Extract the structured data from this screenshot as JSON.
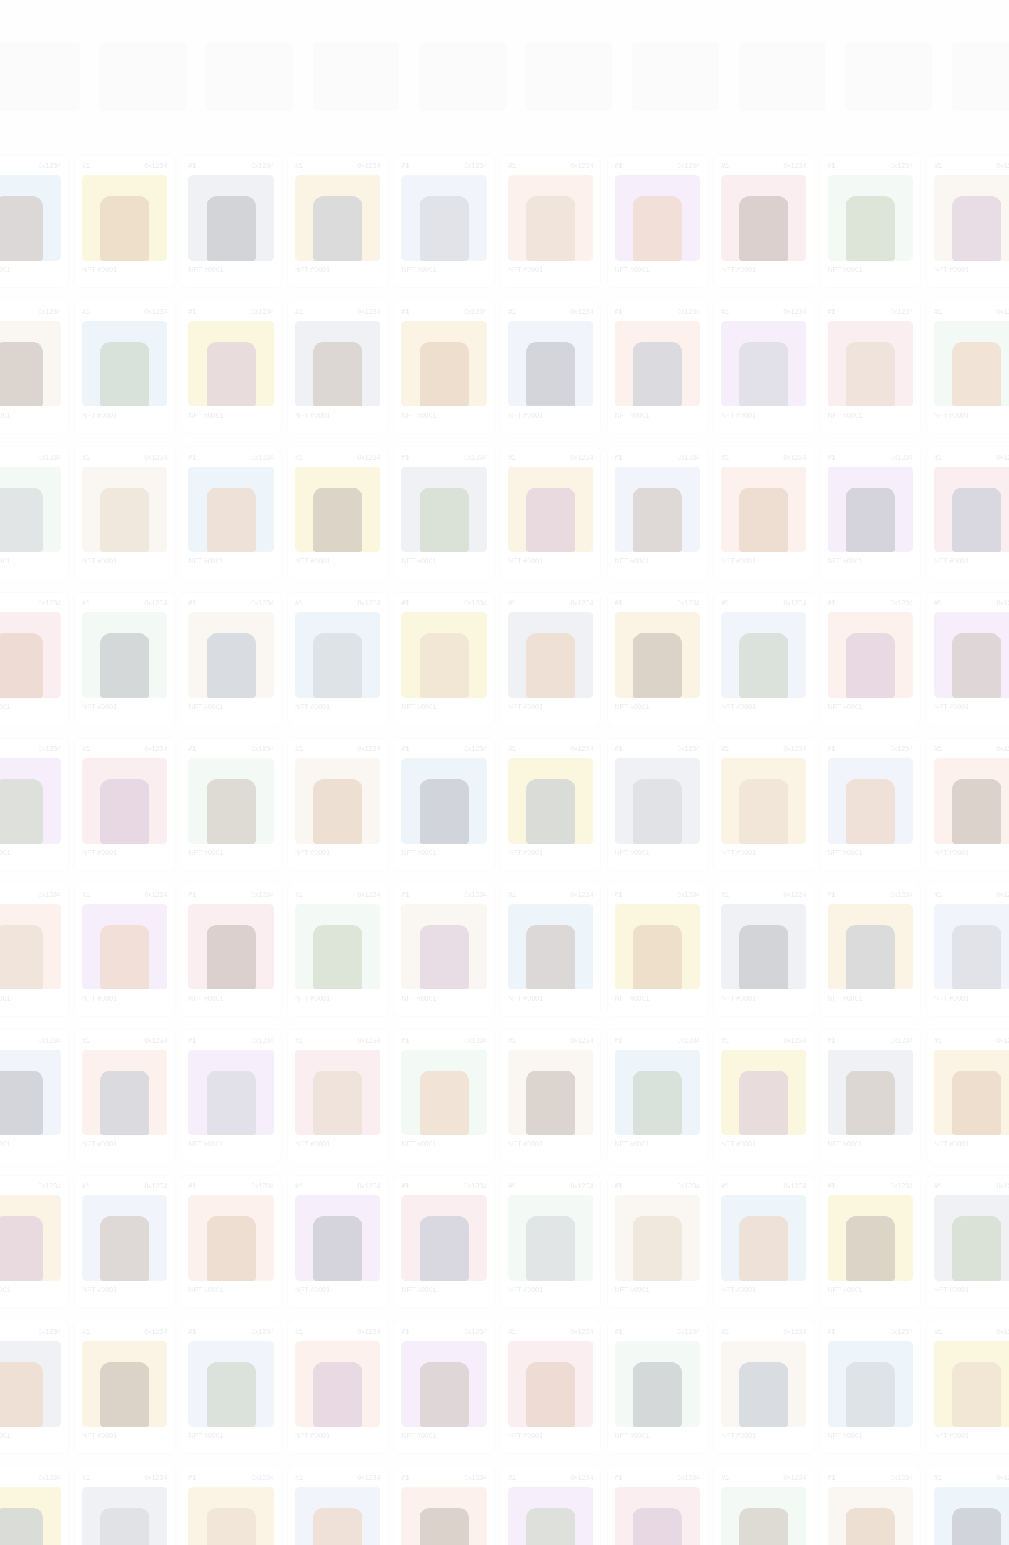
{
  "gallery": {
    "card_number": "#1",
    "card_address": "0x1234",
    "card_label": "NFT #0001",
    "rows": 10,
    "columns": 10,
    "palette": [
      "#cfe4f5",
      "#f4e1b7",
      "#e6d6f5",
      "#f2e9dc",
      "#d7dbe2",
      "#f6d9cf",
      "#dff2e8",
      "#f5e7a8",
      "#dde3f5",
      "#f2d1d7"
    ],
    "figure_palette": [
      "#7b5c45",
      "#5c4535",
      "#8a8f99",
      "#b77a4c",
      "#6f8c5a",
      "#c2a07a",
      "#4b4f5a",
      "#9a6a9f",
      "#d4864e",
      "#556c8c"
    ]
  }
}
